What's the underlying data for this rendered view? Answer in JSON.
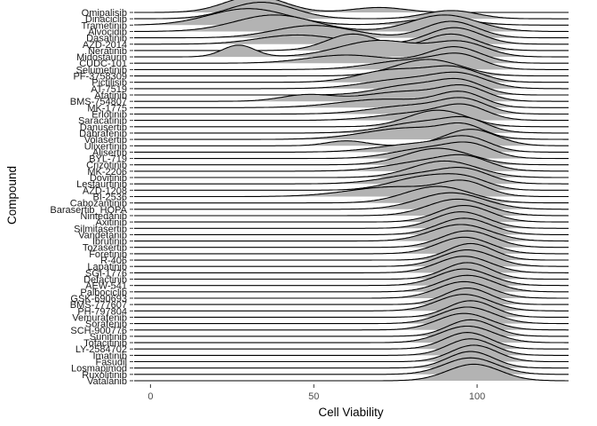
{
  "chart_data": {
    "type": "ridgeline",
    "xlabel": "Cell Viability",
    "ylabel": "Compound",
    "xlim": [
      -5,
      128
    ],
    "xticks": [
      0,
      50,
      100
    ],
    "grid": false,
    "legend": "none",
    "fill_color": "#b3b3b3",
    "line_color": "#000000",
    "series": [
      {
        "name": "Omipalisib",
        "peaks": [
          [
            32,
            9,
            1.0
          ],
          [
            70,
            8,
            0.3
          ]
        ]
      },
      {
        "name": "Dinaciclib",
        "peaks": [
          [
            34,
            10,
            1.0
          ],
          [
            92,
            8,
            0.5
          ]
        ]
      },
      {
        "name": "Trametinib",
        "peaks": [
          [
            30,
            12,
            1.0
          ],
          [
            88,
            10,
            0.4
          ]
        ]
      },
      {
        "name": "Alvocidib",
        "peaks": [
          [
            38,
            12,
            0.7
          ],
          [
            90,
            10,
            0.7
          ]
        ]
      },
      {
        "name": "Dasatinib",
        "peaks": [
          [
            50,
            12,
            0.6
          ],
          [
            92,
            8,
            0.8
          ]
        ]
      },
      {
        "name": "AZD-2014",
        "peaks": [
          [
            45,
            12,
            0.5
          ],
          [
            93,
            8,
            0.9
          ]
        ]
      },
      {
        "name": "Neratinib",
        "peaks": [
          [
            62,
            8,
            0.8
          ],
          [
            92,
            8,
            0.8
          ]
        ]
      },
      {
        "name": "Midostaurin",
        "peaks": [
          [
            27,
            5,
            0.5
          ],
          [
            70,
            12,
            0.7
          ],
          [
            95,
            8,
            0.6
          ]
        ]
      },
      {
        "name": "CUDC-101",
        "peaks": [
          [
            60,
            12,
            0.5
          ],
          [
            93,
            8,
            1.0
          ]
        ]
      },
      {
        "name": "Selumetinib",
        "peaks": [
          [
            80,
            12,
            0.8
          ],
          [
            95,
            7,
            1.0
          ]
        ]
      },
      {
        "name": "PF-3758309",
        "peaks": [
          [
            85,
            10,
            1.0
          ]
        ]
      },
      {
        "name": "Pictilisib",
        "peaks": [
          [
            74,
            10,
            0.7
          ],
          [
            93,
            8,
            0.8
          ]
        ]
      },
      {
        "name": "AT-7519",
        "peaks": [
          [
            78,
            12,
            0.6
          ],
          [
            95,
            8,
            0.8
          ]
        ]
      },
      {
        "name": "Afatinib",
        "peaks": [
          [
            80,
            10,
            0.7
          ],
          [
            95,
            7,
            0.9
          ]
        ]
      },
      {
        "name": "BMS-754807",
        "peaks": [
          [
            48,
            8,
            0.4
          ],
          [
            78,
            12,
            0.6
          ],
          [
            96,
            7,
            0.8
          ]
        ]
      },
      {
        "name": "MK-1775",
        "peaks": [
          [
            72,
            14,
            0.6
          ],
          [
            95,
            7,
            1.0
          ]
        ]
      },
      {
        "name": "Erlotinib",
        "peaks": [
          [
            80,
            12,
            0.6
          ],
          [
            96,
            7,
            0.9
          ]
        ]
      },
      {
        "name": "Saracatinib",
        "peaks": [
          [
            82,
            12,
            0.6
          ],
          [
            96,
            7,
            1.0
          ]
        ]
      },
      {
        "name": "Danusertib",
        "peaks": [
          [
            88,
            9,
            1.0
          ]
        ]
      },
      {
        "name": "Dabrafenib",
        "peaks": [
          [
            85,
            12,
            0.8
          ],
          [
            97,
            6,
            0.6
          ]
        ]
      },
      {
        "name": "Volasertib",
        "peaks": [
          [
            80,
            14,
            0.7
          ],
          [
            96,
            6,
            0.6
          ]
        ]
      },
      {
        "name": "Ulixertinib",
        "peaks": [
          [
            60,
            6,
            0.3
          ],
          [
            98,
            8,
            1.0
          ]
        ]
      },
      {
        "name": "Alisertib",
        "peaks": [
          [
            82,
            12,
            0.6
          ],
          [
            97,
            7,
            0.9
          ]
        ]
      },
      {
        "name": "BYL-719",
        "peaks": [
          [
            84,
            10,
            0.7
          ],
          [
            98,
            7,
            0.9
          ]
        ]
      },
      {
        "name": "Crizotinib",
        "peaks": [
          [
            88,
            10,
            1.0
          ]
        ]
      },
      {
        "name": "MK-2206",
        "peaks": [
          [
            86,
            12,
            0.8
          ],
          [
            97,
            7,
            0.7
          ]
        ]
      },
      {
        "name": "Dovitinib",
        "peaks": [
          [
            90,
            10,
            1.0
          ]
        ]
      },
      {
        "name": "Lestaurtinib",
        "peaks": [
          [
            85,
            12,
            0.8
          ],
          [
            97,
            7,
            0.7
          ]
        ]
      },
      {
        "name": "AZD-1208",
        "peaks": [
          [
            84,
            10,
            0.9
          ],
          [
            97,
            7,
            0.6
          ]
        ]
      },
      {
        "name": "BI-2536",
        "peaks": [
          [
            75,
            14,
            0.6
          ],
          [
            96,
            7,
            0.8
          ]
        ]
      },
      {
        "name": "Cabozantinib",
        "peaks": [
          [
            88,
            10,
            0.9
          ]
        ]
      },
      {
        "name": "Barasertib_HQPA",
        "peaks": [
          [
            92,
            10,
            1.0
          ]
        ]
      },
      {
        "name": "Nintedanib",
        "peaks": [
          [
            94,
            9,
            1.0
          ]
        ]
      },
      {
        "name": "Axitinib",
        "peaks": [
          [
            96,
            8,
            1.0
          ]
        ]
      },
      {
        "name": "Silmitasertib",
        "peaks": [
          [
            95,
            8,
            1.0
          ]
        ]
      },
      {
        "name": "Vandetanib",
        "peaks": [
          [
            96,
            8,
            1.0
          ]
        ]
      },
      {
        "name": "Ibrutinib",
        "peaks": [
          [
            95,
            9,
            1.0
          ]
        ]
      },
      {
        "name": "Tozasertib",
        "peaks": [
          [
            97,
            8,
            1.0
          ]
        ]
      },
      {
        "name": "Foretinib",
        "peaks": [
          [
            96,
            8,
            1.0
          ]
        ]
      },
      {
        "name": "R-406",
        "peaks": [
          [
            98,
            7,
            1.0
          ]
        ]
      },
      {
        "name": "Lapatinib",
        "peaks": [
          [
            97,
            8,
            1.0
          ]
        ]
      },
      {
        "name": "SGI-1776",
        "peaks": [
          [
            96,
            8,
            1.0
          ]
        ]
      },
      {
        "name": "Defactinib",
        "peaks": [
          [
            97,
            7,
            1.0
          ]
        ]
      },
      {
        "name": "AEW-541",
        "peaks": [
          [
            96,
            8,
            1.0
          ]
        ]
      },
      {
        "name": "Palbociclib",
        "peaks": [
          [
            97,
            8,
            1.0
          ]
        ]
      },
      {
        "name": "GSK-690693",
        "peaks": [
          [
            96,
            8,
            1.0
          ]
        ]
      },
      {
        "name": "BMS-777607",
        "peaks": [
          [
            97,
            7,
            1.0
          ]
        ]
      },
      {
        "name": "PH-797804",
        "peaks": [
          [
            96,
            8,
            1.0
          ]
        ]
      },
      {
        "name": "Vemurafenib",
        "peaks": [
          [
            98,
            7,
            1.0
          ]
        ]
      },
      {
        "name": "Sorafenib",
        "peaks": [
          [
            97,
            8,
            1.0
          ]
        ]
      },
      {
        "name": "SCH-900776",
        "peaks": [
          [
            96,
            8,
            1.0
          ]
        ]
      },
      {
        "name": "Sunitinib",
        "peaks": [
          [
            98,
            7,
            1.0
          ]
        ]
      },
      {
        "name": "Tofacitinib",
        "peaks": [
          [
            97,
            8,
            1.0
          ]
        ]
      },
      {
        "name": "LY-2584702",
        "peaks": [
          [
            97,
            7,
            1.0
          ]
        ]
      },
      {
        "name": "Imatinib",
        "peaks": [
          [
            98,
            7,
            1.0
          ]
        ]
      },
      {
        "name": "Fasudil",
        "peaks": [
          [
            99,
            7,
            1.0
          ]
        ]
      },
      {
        "name": "Losmapimod",
        "peaks": [
          [
            98,
            7,
            1.0
          ]
        ]
      },
      {
        "name": "Ruxolitinib",
        "peaks": [
          [
            98,
            8,
            1.0
          ]
        ]
      },
      {
        "name": "Vatalanib",
        "peaks": [
          [
            99,
            8,
            1.0
          ]
        ]
      }
    ]
  }
}
